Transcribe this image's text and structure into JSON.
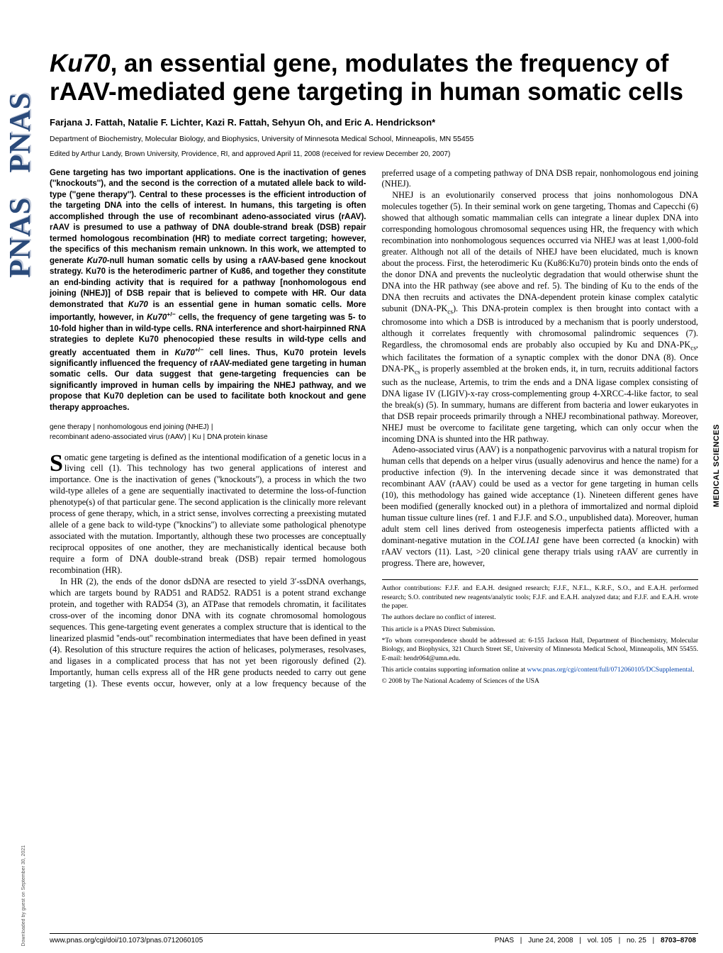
{
  "meta": {
    "journal_logo": "PNAS",
    "section_tab": "MEDICAL SCIENCES",
    "download_note": "Downloaded by guest on September 30, 2021",
    "colors": {
      "logo_text": "#2a4a7a",
      "logo_shadow": "#c0c8d8",
      "link": "#0645ad",
      "text": "#000000",
      "background": "#ffffff"
    }
  },
  "header": {
    "title_pre_gene": "",
    "title_gene": "Ku70",
    "title_post_gene": ", an essential gene, modulates the frequency of rAAV-mediated gene targeting in human somatic cells",
    "authors": "Farjana J. Fattah, Natalie F. Lichter, Kazi R. Fattah, Sehyun Oh, and Eric A. Hendrickson*",
    "affiliation": "Department of Biochemistry, Molecular Biology, and Biophysics, University of Minnesota Medical School, Minneapolis, MN 55455",
    "edited": "Edited by Arthur Landy, Brown University, Providence, RI, and approved April 11, 2008 (received for review December 20, 2007)"
  },
  "abstract": {
    "text_1": "Gene targeting has two important applications. One is the inactivation of genes (''knockouts''), and the second is the correction of a mutated allele back to wild-type (''gene therapy''). Central to these processes is the efficient introduction of the targeting DNA into the cells of interest. In humans, this targeting is often accomplished through the use of recombinant adeno-associated virus (rAAV). rAAV is presumed to use a pathway of DNA double-strand break (DSB) repair termed homologous recombination (HR) to mediate correct targeting; however, the specifics of this mechanism remain unknown. In this work, we attempted to generate ",
    "gene_1": "Ku70",
    "text_2": "-null human somatic cells by using a rAAV-based gene knockout strategy. Ku70 is the heterodimeric partner of Ku86, and together they constitute an end-binding activity that is required for a pathway [nonhomologous end joining (NHEJ)] of DSB repair that is believed to compete with HR. Our data demonstrated that ",
    "gene_2": "Ku70",
    "text_3": " is an essential gene in human somatic cells. More importantly, however, in ",
    "gene_3": "Ku70",
    "sup_1": "+/−",
    "text_4": " cells, the frequency of gene targeting was 5- to 10-fold higher than in wild-type cells. RNA interference and short-hairpinned RNA strategies to deplete Ku70 phenocopied these results in wild-type cells and greatly accentuated them in ",
    "gene_4": "Ku70",
    "sup_2": "+/−",
    "text_5": " cell lines. Thus, Ku70 protein levels significantly influenced the frequency of rAAV-mediated gene targeting in human somatic cells. Our data suggest that gene-targeting frequencies can be significantly improved in human cells by impairing the NHEJ pathway, and we propose that Ku70 depletion can be used to facilitate both knockout and gene therapy approaches."
  },
  "keywords": {
    "k1": "gene therapy",
    "k2": "nonhomologous end joining (NHEJ)",
    "k3": "recombinant adeno-associated virus (rAAV)",
    "k4": "Ku",
    "k5": "DNA protein kinase"
  },
  "body": {
    "dropcap": "S",
    "p1_first": "omatic gene targeting is defined as the intentional modification of a genetic locus in a living cell (1). This technology has two general applications of interest and importance. One is the inactivation of genes (''knockouts''), a process in which the two wild-type alleles of a gene are sequentially inactivated to determine the loss-of-function phenotype(s) of that particular gene. The second application is the clinically more relevant process of gene therapy, which, in a strict sense, involves correcting a preexisting mutated allele of a gene back to wild-type (''knockins'') to alleviate some pathological phenotype associated with the mutation. Importantly, although these two processes are conceptually reciprocal opposites of one another, they are mechanistically identical because both require a form of DNA double-strand break (DSB) repair termed homologous recombination (HR).",
    "p2": "In HR (2), the ends of the donor dsDNA are resected to yield 3′-ssDNA overhangs, which are targets bound by RAD51 and RAD52. RAD51 is a potent strand exchange protein, and together with RAD54 (3), an ATPase that remodels chromatin, it facilitates cross-over of the incoming donor DNA with its cognate chromosomal homologous sequences. This gene-targeting event generates a complex structure that is identical to the linearized plasmid ''ends-out'' recombination intermediates that have been defined in yeast (4). Resolution of this structure requires the action of helicases, polymerases, resolvases, and ligases in a complicated process that has not yet been rigorously defined (2). Importantly, human cells express all of the HR gene products needed to carry out gene targeting (1). These events occur, however, only at a low frequency because of the preferred usage of a competing pathway of DNA DSB repair, nonhomologous end joining (NHEJ).",
    "p3a": "NHEJ is an evolutionarily conserved process that joins nonhomologous DNA molecules together (5). In their seminal work on gene targeting, Thomas and Capecchi (6) showed that although somatic mammalian cells can integrate a linear duplex DNA into corresponding homologous chromosomal sequences using HR, the frequency with which recombination into nonhomologous sequences occurred via NHEJ was at least 1,000-fold greater. Although not all of the details of NHEJ have been elucidated, much is known about the process. First, the heterodimeric Ku (Ku86:Ku70) protein binds onto the ends of the donor DNA and prevents the nucleolytic degradation that would otherwise shunt the DNA into the HR pathway (see above and ref. 5). The binding of Ku to the ends of the DNA then recruits and activates the DNA-dependent protein kinase complex catalytic subunit (DNA-PK",
    "p3_sub1": "cs",
    "p3b": "). This DNA-protein complex is then brought into contact with a chromosome into which a DSB is introduced by a mechanism that is poorly understood, although it correlates frequently with chromosomal palindromic sequences (7). Regardless, the chromosomal ends are probably also occupied by Ku and DNA-PK",
    "p3_sub2": "cs",
    "p3c": ", which facilitates the formation of a synaptic complex with the donor DNA (8). Once DNA-PK",
    "p3_sub3": "cs",
    "p3d": " is properly assembled at the broken ends, it, in turn, recruits additional factors such as the nuclease, Artemis, to trim the ends and a DNA ligase complex consisting of DNA ligase IV (LIGIV)-x-ray cross-complementing group 4-XRCC-4-like factor, to seal the break(s) (5). In summary, humans are different from bacteria and lower eukaryotes in that DSB repair proceeds primarily through a NHEJ recombinational pathway. Moreover, NHEJ must be overcome to facilitate gene targeting, which can only occur when the incoming DNA is shunted into the HR pathway.",
    "p4a": "Adeno-associated virus (AAV) is a nonpathogenic parvovirus with a natural tropism for human cells that depends on a helper virus (usually adenovirus and hence the name) for a productive infection (9). In the intervening decade since it was demonstrated that recombinant AAV (rAAV) could be used as a vector for gene targeting in human cells (10), this methodology has gained wide acceptance (1). Nineteen different genes have been modified (generally knocked out) in a plethora of immortalized and normal diploid human tissue culture lines (ref. 1 and F.J.F. and S.O., unpublished data). Moreover, human adult stem cell lines derived from osteogenesis imperfecta patients afflicted with a dominant-negative mutation in the ",
    "p4_gene": "COL1A1",
    "p4b": " gene have been corrected (a knockin) with rAAV vectors (11). Last, >20 clinical gene therapy trials using rAAV are currently in progress. There are, however,"
  },
  "footnotes": {
    "contributions": "Author contributions: F.J.F. and E.A.H. designed research; F.J.F., N.F.L., K.R.F., S.O., and E.A.H. performed research; S.O. contributed new reagents/analytic tools; F.J.F. and E.A.H. analyzed data; and F.J.F. and E.A.H. wrote the paper.",
    "conflict": "The authors declare no conflict of interest.",
    "submission": "This article is a PNAS Direct Submission.",
    "correspondence": "*To whom correspondence should be addressed at: 6-155 Jackson Hall, Department of Biochemistry, Molecular Biology, and Biophysics, 321 Church Street SE, University of Minnesota Medical School, Minneapolis, MN 55455. E-mail: hendr064@umn.edu.",
    "supporting_pre": "This article contains supporting information online at ",
    "supporting_link": "www.pnas.org/cgi/content/full/0712060105/DCSupplemental",
    "supporting_post": ".",
    "copyright": "© 2008 by The National Academy of Sciences of the USA"
  },
  "footer": {
    "doi": "www.pnas.org/cgi/doi/10.1073/pnas.0712060105",
    "journal": "PNAS",
    "date": "June 24, 2008",
    "volume": "vol. 105",
    "issue": "no. 25",
    "pages": "8703–8708"
  }
}
